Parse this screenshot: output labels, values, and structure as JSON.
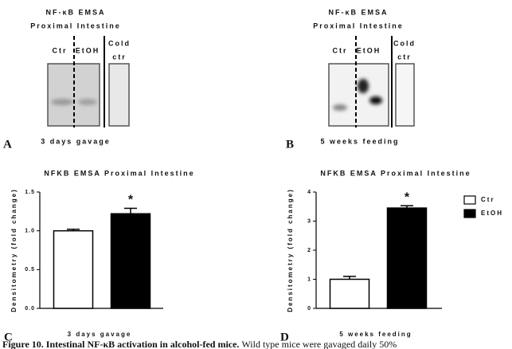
{
  "panels": [
    {
      "letter": "A",
      "title": "NF-κB EMSA",
      "subtitle": "Proximal Intestine",
      "lanes": [
        "Ctr",
        "EtOH"
      ],
      "cold_label": [
        "Cold",
        "ctr"
      ],
      "condition": "3 days gavage"
    },
    {
      "letter": "B",
      "title": "NF-κB EMSA",
      "subtitle": "Proximal Intestine",
      "lanes": [
        "Ctr",
        "EtOH"
      ],
      "cold_label": [
        "Cold",
        "ctr"
      ],
      "condition": "5 weeks feeding"
    }
  ],
  "chart_data": [
    {
      "type": "bar",
      "letter": "C",
      "title": "NFKB EMSA Proximal Intestine",
      "y_label": "Densitometry (fold change)",
      "x_label": "3 days gavage",
      "ylim": [
        0,
        1.5
      ],
      "yticks": [
        {
          "value": 0,
          "label": "0.0"
        },
        {
          "value": 0.5,
          "label": "0.5"
        },
        {
          "value": 1,
          "label": "1.0"
        },
        {
          "value": 1.5,
          "label": "1.5"
        }
      ],
      "series": [
        {
          "color": "#ffffff",
          "values": [
            1.0
          ],
          "errors": [
            0.02
          ]
        },
        {
          "color": "#000000",
          "values": [
            1.22
          ],
          "errors": [
            0.07
          ]
        }
      ],
      "annotation": "*"
    },
    {
      "type": "bar",
      "letter": "D",
      "title": "NFKB EMSA Proximal Intestine",
      "y_label": "Densitometry (fold change)",
      "x_label": "5 weeks feeding",
      "ylim": [
        0,
        4
      ],
      "yticks": [
        0,
        1,
        2,
        3,
        4
      ],
      "series": [
        {
          "name": "Ctr",
          "color": "#ffffff",
          "values": [
            1.0
          ],
          "errors": [
            0.1
          ]
        },
        {
          "name": "EtOH",
          "color": "#000000",
          "values": [
            3.45
          ],
          "errors": [
            0.08
          ]
        }
      ],
      "annotation": "*",
      "legend": "upper right"
    }
  ],
  "caption": {
    "label": "Figure 10.",
    "title": "Intestinal NF-κB activation in alcohol-fed mice.",
    "text": "Wild type mice were gavaged daily 50%"
  }
}
